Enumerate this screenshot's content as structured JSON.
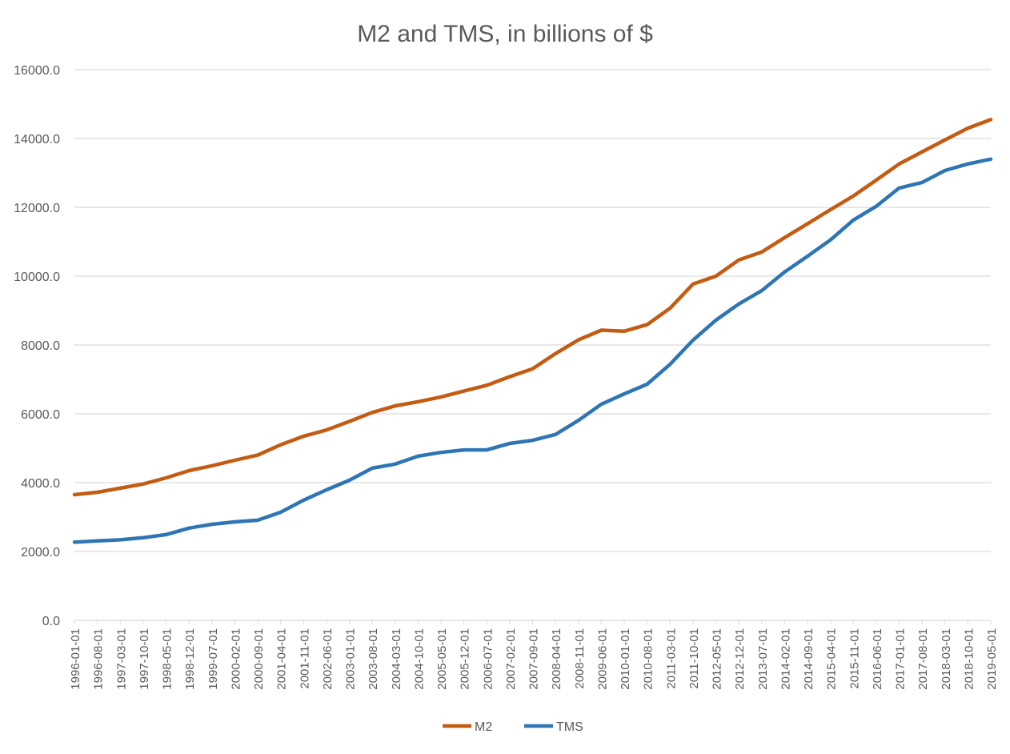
{
  "chart_data": {
    "type": "line",
    "title": "M2 and TMS, in billions of $",
    "xlabel": "",
    "ylabel": "",
    "ylim": [
      0,
      16000
    ],
    "yticks": [
      "0.0",
      "2000.0",
      "4000.0",
      "6000.0",
      "8000.0",
      "10000.0",
      "12000.0",
      "14000.0",
      "16000.0"
    ],
    "ytick_values": [
      0,
      2000,
      4000,
      6000,
      8000,
      10000,
      12000,
      14000,
      16000
    ],
    "grid": true,
    "legend_position": "bottom",
    "x": [
      "1996-01-01",
      "1996-08-01",
      "1997-03-01",
      "1997-10-01",
      "1998-05-01",
      "1998-12-01",
      "1999-07-01",
      "2000-02-01",
      "2000-09-01",
      "2001-04-01",
      "2001-11-01",
      "2002-06-01",
      "2003-01-01",
      "2003-08-01",
      "2004-03-01",
      "2004-10-01",
      "2005-05-01",
      "2005-12-01",
      "2006-07-01",
      "2007-02-01",
      "2007-09-01",
      "2008-04-01",
      "2008-11-01",
      "2009-06-01",
      "2010-01-01",
      "2010-08-01",
      "2011-03-01",
      "2011-10-01",
      "2012-05-01",
      "2012-12-01",
      "2013-07-01",
      "2014-02-01",
      "2014-09-01",
      "2015-04-01",
      "2015-11-01",
      "2016-06-01",
      "2017-01-01",
      "2017-08-01",
      "2018-03-01",
      "2018-10-01",
      "2019-05-01"
    ],
    "series": [
      {
        "name": "M2",
        "color": "#c55a11",
        "values": [
          3650,
          3720,
          3840,
          3960,
          4140,
          4350,
          4490,
          4650,
          4800,
          5100,
          5350,
          5530,
          5780,
          6040,
          6230,
          6350,
          6490,
          6660,
          6830,
          7080,
          7310,
          7750,
          8150,
          8430,
          8400,
          8590,
          9070,
          9770,
          10000,
          10470,
          10700,
          11120,
          11520,
          11930,
          12330,
          12790,
          13260,
          13610,
          13960,
          14300,
          14550
        ]
      },
      {
        "name": "TMS",
        "color": "#2e75b6",
        "values": [
          2270,
          2310,
          2340,
          2400,
          2490,
          2680,
          2790,
          2860,
          2910,
          3140,
          3490,
          3790,
          4070,
          4420,
          4540,
          4770,
          4880,
          4950,
          4950,
          5140,
          5230,
          5400,
          5810,
          6280,
          6580,
          6860,
          7440,
          8140,
          8720,
          9190,
          9580,
          10120,
          10580,
          11050,
          11630,
          12030,
          12560,
          12720,
          13070,
          13260,
          13400
        ]
      }
    ]
  }
}
